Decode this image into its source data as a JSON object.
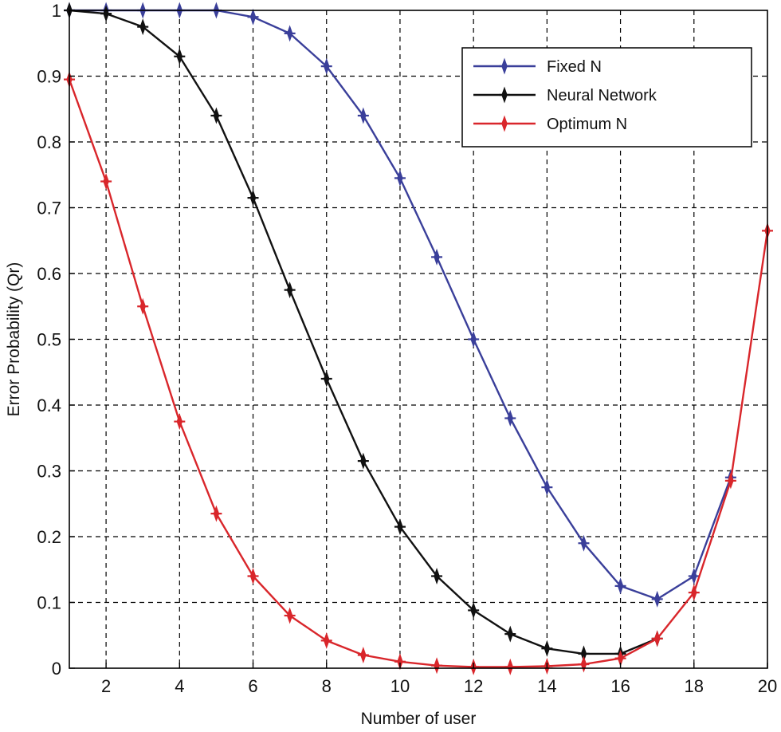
{
  "chart_data": {
    "type": "line",
    "title": "",
    "xlabel": "Number of user",
    "ylabel": "Error Probability (Qr)",
    "xlim": [
      1,
      20
    ],
    "ylim": [
      0,
      1
    ],
    "xticks": [
      2,
      4,
      6,
      8,
      10,
      12,
      14,
      16,
      18,
      20
    ],
    "yticks": [
      0,
      0.1,
      0.2,
      0.3,
      0.4,
      0.5,
      0.6,
      0.7,
      0.8,
      0.9,
      1
    ],
    "xtick_labels": [
      "2",
      "4",
      "6",
      "8",
      "10",
      "12",
      "14",
      "16",
      "18",
      "20"
    ],
    "ytick_labels": [
      "0",
      "0.1",
      "0.2",
      "0.3",
      "0.4",
      "0.5",
      "0.6",
      "0.7",
      "0.8",
      "0.9",
      "1"
    ],
    "grid": true,
    "legend_position": "top-right",
    "x": [
      1,
      2,
      3,
      4,
      5,
      6,
      7,
      8,
      9,
      10,
      11,
      12,
      13,
      14,
      15,
      16,
      17,
      18,
      19,
      20
    ],
    "series": [
      {
        "name": "Fixed N",
        "color": "#3a3f9a",
        "values": [
          1.0,
          1.0,
          1.0,
          1.0,
          1.0,
          0.99,
          0.965,
          0.915,
          0.84,
          0.745,
          0.625,
          0.5,
          0.38,
          0.275,
          0.19,
          0.125,
          0.105,
          0.14,
          0.29,
          null
        ]
      },
      {
        "name": "Neural Network",
        "color": "#111111",
        "values": [
          1.0,
          0.995,
          0.975,
          0.93,
          0.84,
          0.715,
          0.575,
          0.44,
          0.315,
          0.215,
          0.14,
          0.088,
          0.052,
          0.03,
          0.022,
          0.022,
          0.045,
          null,
          null,
          null
        ]
      },
      {
        "name": "Optimum N",
        "color": "#d9262b",
        "values": [
          0.895,
          0.74,
          0.55,
          0.375,
          0.235,
          0.14,
          0.08,
          0.042,
          0.02,
          0.01,
          0.004,
          0.002,
          0.002,
          0.003,
          0.006,
          0.015,
          0.045,
          0.115,
          0.285,
          0.665
        ]
      }
    ]
  }
}
